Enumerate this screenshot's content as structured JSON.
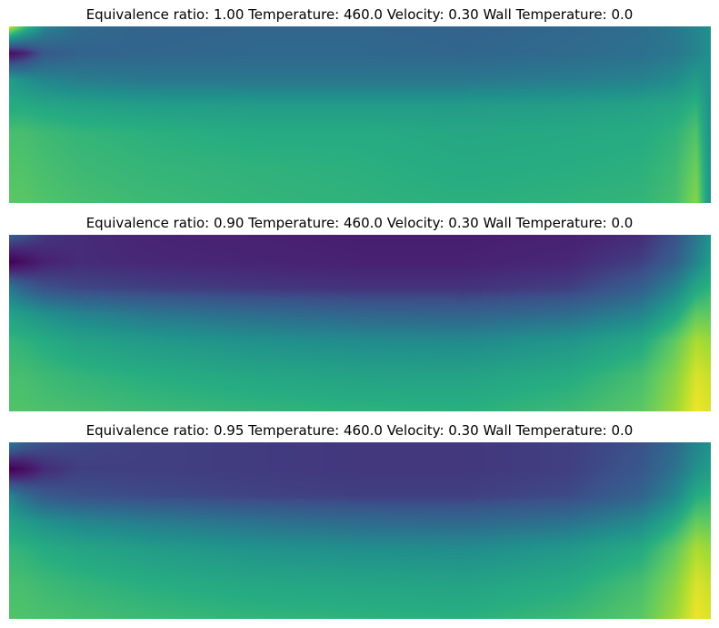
{
  "chart_data": [
    {
      "type": "heatmap",
      "title": "Equivalence ratio: 1.00 Temperature: 460.0 Velocity: 0.30 Wall Temperature: 0.0",
      "colormap": "viridis",
      "axes": "off",
      "grid": false,
      "legend": "none",
      "x_columns": [
        0.0,
        0.02,
        0.05,
        0.1,
        0.2,
        0.35,
        0.5,
        0.65,
        0.8,
        0.9,
        0.95,
        0.98,
        1.0
      ],
      "y_rows": [
        0.0,
        0.15,
        0.3,
        0.45,
        0.6,
        0.8,
        1.0
      ],
      "values": [
        [
          0.92,
          0.7,
          0.45,
          0.35,
          0.32,
          0.33,
          0.33,
          0.32,
          0.34,
          0.36,
          0.4,
          0.45,
          0.5
        ],
        [
          0.05,
          0.12,
          0.28,
          0.32,
          0.33,
          0.34,
          0.34,
          0.33,
          0.35,
          0.37,
          0.4,
          0.45,
          0.5
        ],
        [
          0.55,
          0.5,
          0.45,
          0.42,
          0.4,
          0.4,
          0.4,
          0.4,
          0.42,
          0.44,
          0.48,
          0.55,
          0.5
        ],
        [
          0.62,
          0.62,
          0.6,
          0.58,
          0.56,
          0.55,
          0.55,
          0.55,
          0.56,
          0.58,
          0.6,
          0.65,
          0.5
        ],
        [
          0.7,
          0.7,
          0.68,
          0.66,
          0.64,
          0.62,
          0.62,
          0.6,
          0.61,
          0.62,
          0.65,
          0.72,
          0.5
        ],
        [
          0.72,
          0.72,
          0.7,
          0.68,
          0.66,
          0.65,
          0.64,
          0.62,
          0.63,
          0.64,
          0.68,
          0.78,
          0.5
        ],
        [
          0.74,
          0.74,
          0.72,
          0.7,
          0.68,
          0.66,
          0.65,
          0.64,
          0.65,
          0.66,
          0.7,
          0.82,
          0.5
        ]
      ]
    },
    {
      "type": "heatmap",
      "title": "Equivalence ratio: 0.90 Temperature: 460.0 Velocity: 0.30 Wall Temperature: 0.0",
      "colormap": "viridis",
      "axes": "off",
      "grid": false,
      "legend": "none",
      "x_columns": [
        0.0,
        0.02,
        0.05,
        0.1,
        0.2,
        0.35,
        0.5,
        0.65,
        0.8,
        0.9,
        0.95,
        0.98,
        1.0
      ],
      "y_rows": [
        0.0,
        0.15,
        0.3,
        0.45,
        0.6,
        0.8,
        1.0
      ],
      "values": [
        [
          0.3,
          0.25,
          0.18,
          0.15,
          0.13,
          0.12,
          0.11,
          0.11,
          0.12,
          0.15,
          0.25,
          0.4,
          0.5
        ],
        [
          0.0,
          0.05,
          0.12,
          0.15,
          0.14,
          0.13,
          0.12,
          0.12,
          0.14,
          0.2,
          0.3,
          0.45,
          0.55
        ],
        [
          0.4,
          0.32,
          0.25,
          0.22,
          0.2,
          0.18,
          0.17,
          0.17,
          0.2,
          0.3,
          0.45,
          0.6,
          0.65
        ],
        [
          0.58,
          0.55,
          0.5,
          0.45,
          0.4,
          0.36,
          0.33,
          0.32,
          0.36,
          0.45,
          0.6,
          0.75,
          0.75
        ],
        [
          0.66,
          0.65,
          0.62,
          0.58,
          0.54,
          0.5,
          0.48,
          0.47,
          0.52,
          0.6,
          0.75,
          0.88,
          0.85
        ],
        [
          0.7,
          0.7,
          0.68,
          0.66,
          0.63,
          0.6,
          0.58,
          0.58,
          0.62,
          0.7,
          0.82,
          0.95,
          0.92
        ],
        [
          0.72,
          0.72,
          0.71,
          0.7,
          0.68,
          0.66,
          0.65,
          0.64,
          0.68,
          0.74,
          0.86,
          0.98,
          0.95
        ]
      ]
    },
    {
      "type": "heatmap",
      "title": "Equivalence ratio: 0.95 Temperature: 460.0 Velocity: 0.30 Wall Temperature: 0.0",
      "colormap": "viridis",
      "axes": "off",
      "grid": false,
      "legend": "none",
      "x_columns": [
        0.0,
        0.02,
        0.05,
        0.1,
        0.2,
        0.35,
        0.5,
        0.65,
        0.8,
        0.9,
        0.95,
        0.98,
        1.0
      ],
      "y_rows": [
        0.0,
        0.15,
        0.3,
        0.45,
        0.6,
        0.8,
        1.0
      ],
      "values": [
        [
          0.4,
          0.32,
          0.25,
          0.22,
          0.2,
          0.19,
          0.18,
          0.18,
          0.2,
          0.25,
          0.35,
          0.45,
          0.5
        ],
        [
          0.0,
          0.05,
          0.15,
          0.2,
          0.2,
          0.19,
          0.18,
          0.18,
          0.2,
          0.27,
          0.38,
          0.5,
          0.55
        ],
        [
          0.45,
          0.36,
          0.28,
          0.25,
          0.23,
          0.21,
          0.2,
          0.2,
          0.23,
          0.32,
          0.46,
          0.62,
          0.65
        ],
        [
          0.58,
          0.55,
          0.5,
          0.46,
          0.42,
          0.38,
          0.35,
          0.34,
          0.38,
          0.47,
          0.62,
          0.76,
          0.75
        ],
        [
          0.66,
          0.65,
          0.62,
          0.59,
          0.55,
          0.51,
          0.49,
          0.48,
          0.53,
          0.61,
          0.75,
          0.88,
          0.85
        ],
        [
          0.7,
          0.7,
          0.68,
          0.66,
          0.63,
          0.6,
          0.59,
          0.58,
          0.62,
          0.7,
          0.82,
          0.95,
          0.92
        ],
        [
          0.72,
          0.72,
          0.71,
          0.7,
          0.68,
          0.66,
          0.65,
          0.64,
          0.68,
          0.74,
          0.86,
          0.98,
          0.95
        ]
      ]
    }
  ]
}
